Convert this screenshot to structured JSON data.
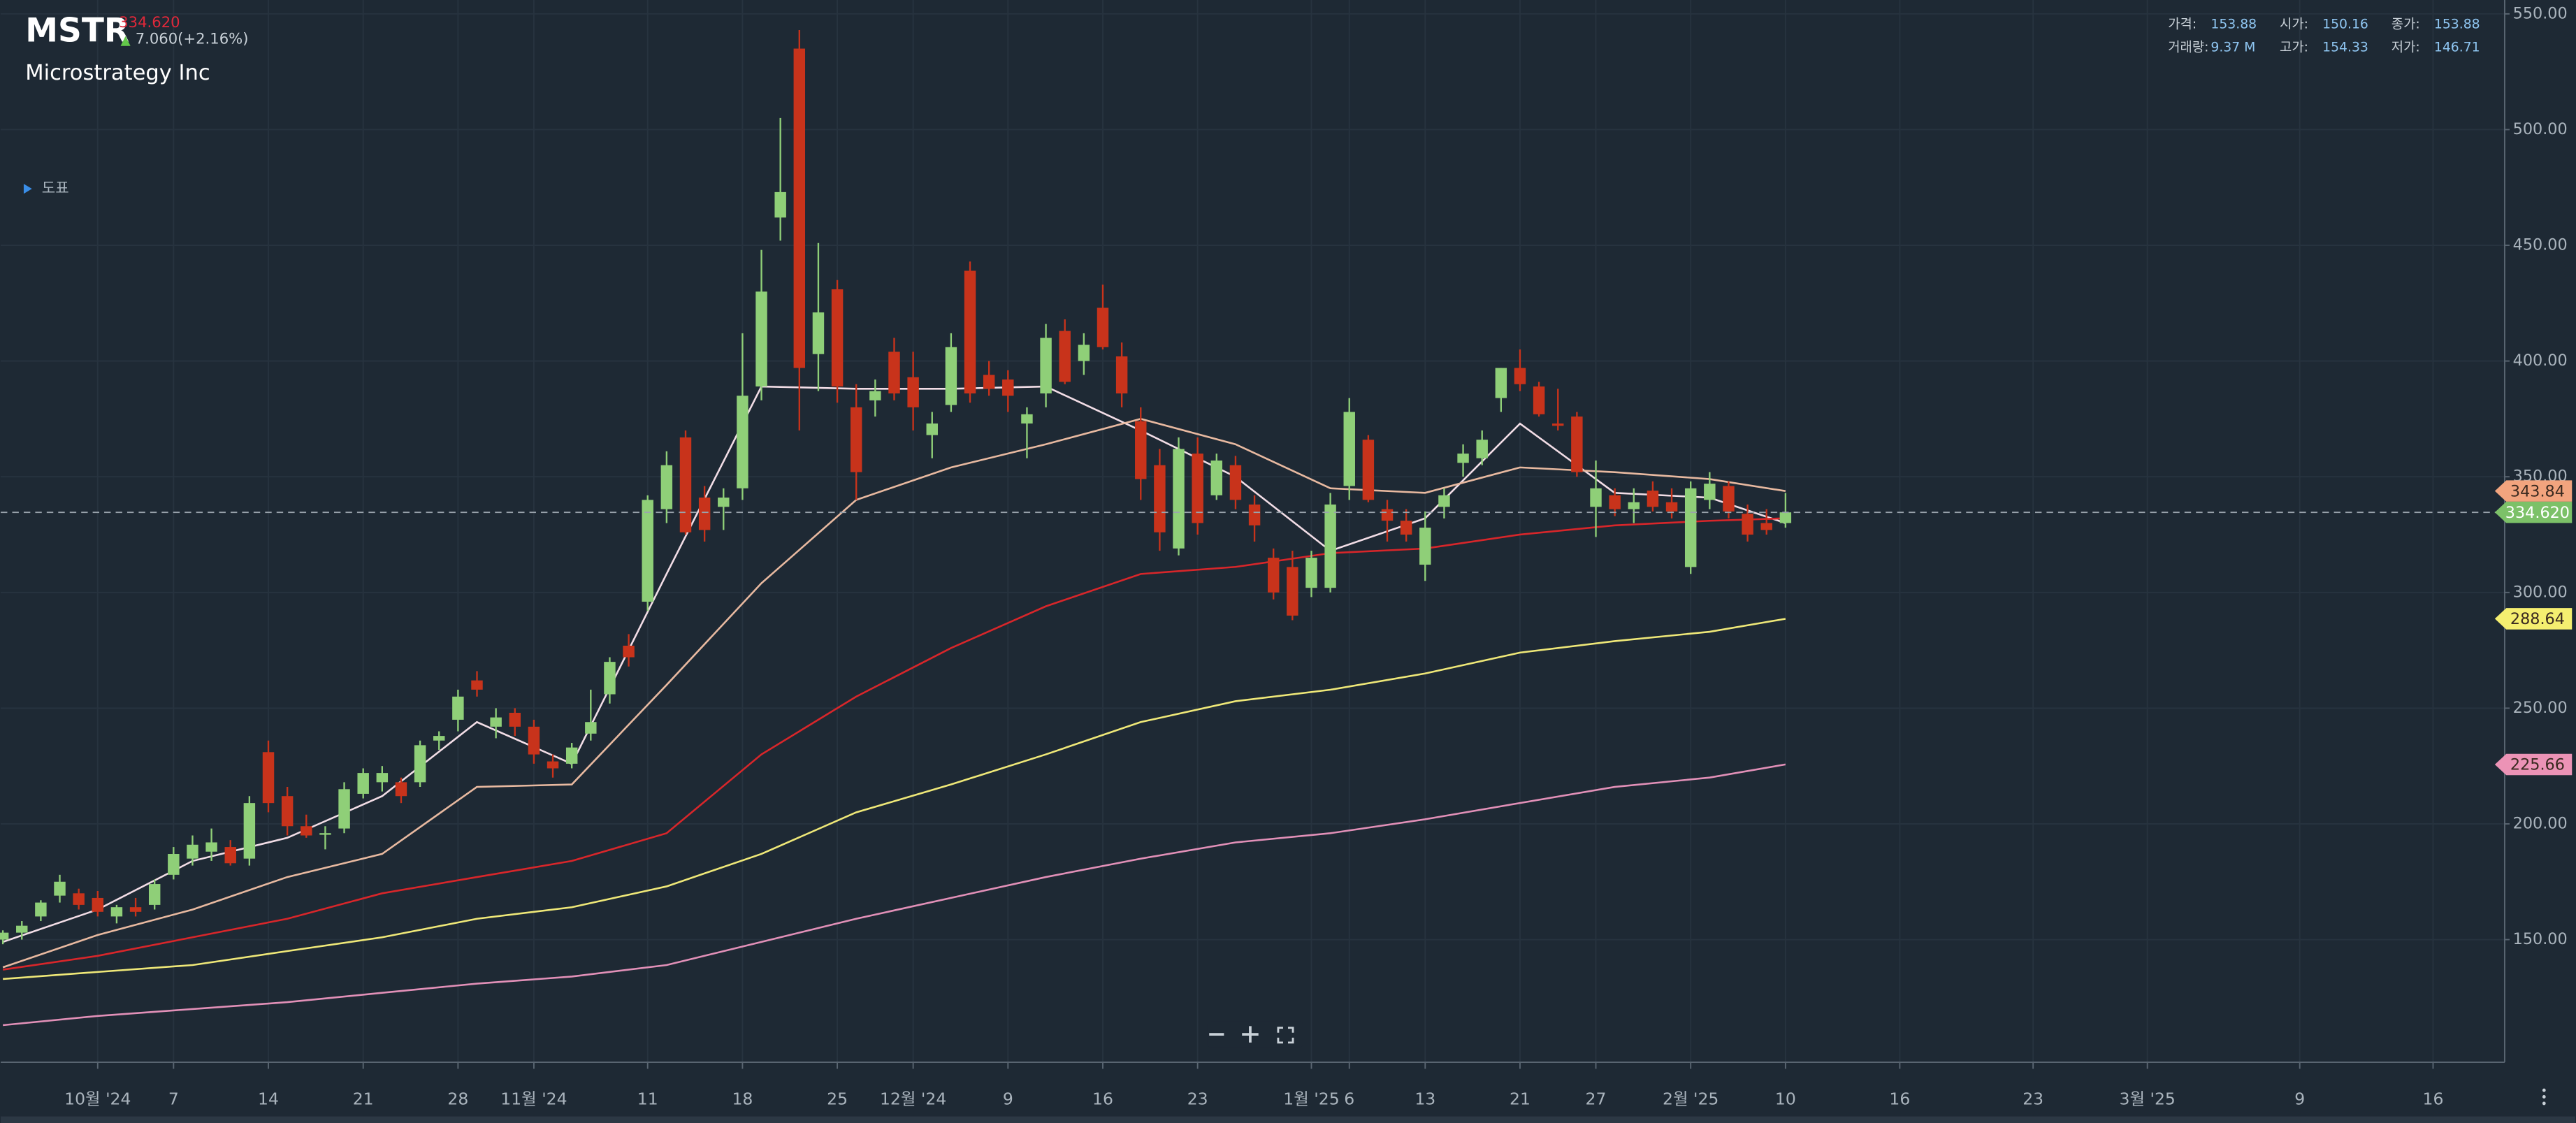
{
  "header": {
    "symbol": "MSTR",
    "price": "334.620",
    "change": "7.060(+2.16%)",
    "name": "Microstrategy Inc",
    "indicator_toggle": "도표"
  },
  "info": [
    {
      "label": "가격:",
      "value": "153.88"
    },
    {
      "label": "시가:",
      "value": "150.16"
    },
    {
      "label": "종가:",
      "value": "153.88"
    },
    {
      "label": "거래량:",
      "value": "9.37 M"
    },
    {
      "label": "고가:",
      "value": "154.33"
    },
    {
      "label": "저가:",
      "value": "146.71"
    }
  ],
  "chart_data": {
    "type": "candlestick",
    "up_color": "#8fcf78",
    "down_color": "#c8331b",
    "grid": true,
    "categories": [
      "2024-09-24",
      "2024-09-25",
      "2024-09-26",
      "2024-09-27",
      "2024-09-30",
      "2024-10-01",
      "2024-10-02",
      "2024-10-03",
      "2024-10-04",
      "2024-10-07",
      "2024-10-08",
      "2024-10-09",
      "2024-10-10",
      "2024-10-11",
      "2024-10-14",
      "2024-10-15",
      "2024-10-16",
      "2024-10-17",
      "2024-10-18",
      "2024-10-21",
      "2024-10-22",
      "2024-10-23",
      "2024-10-24",
      "2024-10-25",
      "2024-10-28",
      "2024-10-29",
      "2024-10-30",
      "2024-10-31",
      "2024-11-01",
      "2024-11-04",
      "2024-11-05",
      "2024-11-06",
      "2024-11-07",
      "2024-11-08",
      "2024-11-11",
      "2024-11-12",
      "2024-11-13",
      "2024-11-14",
      "2024-11-15",
      "2024-11-18",
      "2024-11-19",
      "2024-11-20",
      "2024-11-21",
      "2024-11-22",
      "2024-11-25",
      "2024-11-26",
      "2024-11-27",
      "2024-11-29",
      "2024-12-02",
      "2024-12-03",
      "2024-12-04",
      "2024-12-05",
      "2024-12-06",
      "2024-12-09",
      "2024-12-10",
      "2024-12-11",
      "2024-12-12",
      "2024-12-13",
      "2024-12-16",
      "2024-12-17",
      "2024-12-18",
      "2024-12-19",
      "2024-12-20",
      "2024-12-23",
      "2024-12-24",
      "2024-12-26",
      "2024-12-27",
      "2024-12-30",
      "2024-12-31",
      "2025-01-02",
      "2025-01-03",
      "2025-01-06",
      "2025-01-07",
      "2025-01-08",
      "2025-01-10",
      "2025-01-13",
      "2025-01-14",
      "2025-01-15",
      "2025-01-16",
      "2025-01-17",
      "2025-01-21",
      "2025-01-22",
      "2025-01-23",
      "2025-01-24",
      "2025-01-27",
      "2025-01-28",
      "2025-01-29",
      "2025-01-30",
      "2025-01-31",
      "2025-02-03",
      "2025-02-04",
      "2025-02-05",
      "2025-02-06",
      "2025-02-07",
      "2025-02-10"
    ],
    "open": [
      150,
      153,
      160,
      169,
      170,
      168,
      160,
      164,
      165,
      178,
      185,
      188,
      190,
      185,
      231,
      212,
      199,
      196,
      198,
      213,
      218,
      218,
      218,
      236,
      245,
      262,
      242,
      248,
      242,
      227,
      226,
      239,
      256,
      277,
      296,
      336,
      367,
      341,
      337,
      345,
      389,
      462,
      535,
      403,
      431,
      380,
      383,
      404,
      393,
      368,
      381,
      439,
      394,
      392,
      373,
      386,
      413,
      400,
      423,
      402,
      374,
      355,
      319,
      360,
      342,
      355,
      338,
      315,
      311,
      302,
      302,
      346,
      366,
      336,
      331,
      312,
      337,
      356,
      358,
      384,
      397,
      389,
      373,
      376,
      337,
      342,
      336,
      344,
      339,
      311,
      340,
      346,
      334,
      330,
      330
    ],
    "high": [
      154,
      158,
      167,
      178,
      172,
      171,
      165,
      168,
      176,
      190,
      195,
      198,
      193,
      212,
      236,
      216,
      204,
      199,
      218,
      224,
      225,
      220,
      236,
      240,
      258,
      266,
      250,
      250,
      245,
      230,
      235,
      258,
      272,
      282,
      342,
      361,
      370,
      346,
      345,
      412,
      448,
      505,
      543,
      451,
      435,
      390,
      392,
      410,
      404,
      378,
      412,
      443,
      400,
      396,
      380,
      416,
      418,
      412,
      433,
      408,
      380,
      362,
      367,
      367,
      360,
      359,
      342,
      319,
      318,
      318,
      343,
      384,
      368,
      340,
      336,
      335,
      345,
      364,
      370,
      397,
      405,
      391,
      388,
      378,
      357,
      345,
      345,
      348,
      345,
      348,
      352,
      348,
      338,
      336,
      343
    ],
    "low": [
      148,
      150,
      158,
      166,
      163,
      160,
      157,
      160,
      163,
      176,
      182,
      184,
      182,
      182,
      205,
      195,
      194,
      189,
      196,
      211,
      214,
      209,
      216,
      232,
      240,
      255,
      237,
      238,
      226,
      220,
      224,
      236,
      252,
      268,
      292,
      330,
      325,
      322,
      327,
      340,
      383,
      452,
      370,
      387,
      382,
      340,
      376,
      383,
      370,
      358,
      378,
      382,
      385,
      378,
      358,
      380,
      390,
      394,
      405,
      380,
      340,
      318,
      316,
      325,
      340,
      336,
      322,
      297,
      288,
      298,
      300,
      340,
      339,
      322,
      322,
      305,
      332,
      350,
      355,
      378,
      387,
      376,
      370,
      350,
      324,
      333,
      330,
      335,
      332,
      308,
      336,
      332,
      322,
      325,
      328
    ],
    "close": [
      153,
      156,
      166,
      175,
      165,
      162,
      164,
      162,
      174,
      187,
      191,
      192,
      183,
      209,
      209,
      199,
      195,
      196,
      215,
      222,
      222,
      212,
      234,
      238,
      255,
      258,
      246,
      242,
      230,
      224,
      233,
      244,
      270,
      272,
      340,
      355,
      326,
      327,
      341,
      385,
      430,
      473,
      397,
      421,
      389,
      352,
      387,
      386,
      380,
      373,
      406,
      386,
      388,
      385,
      377,
      410,
      391,
      407,
      406,
      386,
      349,
      326,
      362,
      330,
      357,
      340,
      329,
      300,
      290,
      315,
      338,
      378,
      340,
      331,
      325,
      328,
      342,
      360,
      366,
      397,
      390,
      377,
      372,
      352,
      345,
      336,
      339,
      337,
      335,
      345,
      347,
      335,
      325,
      327,
      334.62
    ],
    "ma_x": [
      "2024-09-24",
      "2024-10-01",
      "2024-10-08",
      "2024-10-15",
      "2024-10-22",
      "2024-10-29",
      "2024-11-05",
      "2024-11-12",
      "2024-11-19",
      "2024-11-26",
      "2024-12-04",
      "2024-12-11",
      "2024-12-18",
      "2024-12-26",
      "2025-01-03",
      "2025-01-13",
      "2025-01-21",
      "2025-01-28",
      "2025-02-04",
      "2025-02-10"
    ],
    "ma_lines": [
      {
        "color": "#f2dde6",
        "values": [
          149,
          163,
          184,
          194,
          212,
          244,
          226,
          308,
          389,
          388,
          388,
          389,
          370,
          350,
          318,
          332,
          373,
          343,
          341,
          330
        ]
      },
      {
        "color": "#e8b9a0",
        "values": [
          138,
          152,
          163,
          177,
          187,
          216,
          217,
          260,
          304,
          340,
          354,
          364,
          375,
          364,
          345,
          343,
          354,
          352,
          349,
          343.84
        ]
      },
      {
        "color": "#d8262a",
        "values": [
          137,
          143,
          151,
          159,
          170,
          177,
          184,
          196,
          230,
          255,
          276,
          294,
          308,
          311,
          317,
          319,
          325,
          329,
          331,
          332
        ]
      },
      {
        "color": "#efe878",
        "values": [
          133,
          136,
          139,
          145,
          151,
          159,
          164,
          173,
          187,
          205,
          217,
          230,
          244,
          253,
          258,
          265,
          274,
          279,
          283,
          288.64
        ]
      },
      {
        "color": "#e290b8",
        "values": [
          113,
          117,
          120,
          123,
          127,
          131,
          134,
          139,
          149,
          159,
          168,
          177,
          185,
          192,
          196,
          202,
          209,
          216,
          220,
          225.66
        ]
      }
    ],
    "price_tags": [
      {
        "value": 343.84,
        "color": "#f2a47e"
      },
      {
        "value": 288.64,
        "color": "#f5ef70"
      },
      {
        "value": 225.66,
        "color": "#ec93b6"
      },
      {
        "value": 334.62,
        "label": "334.620",
        "color": "#7cc168"
      }
    ],
    "ylim": [
      97,
      556
    ],
    "yticks": [
      {
        "value": 150,
        "label": "150.00"
      },
      {
        "value": 200,
        "label": "200.00"
      },
      {
        "value": 250,
        "label": "250.00"
      },
      {
        "value": 300,
        "label": "300.00"
      },
      {
        "value": 350,
        "label": "350.00"
      },
      {
        "value": 400,
        "label": "400.00"
      },
      {
        "value": 450,
        "label": "450.00"
      },
      {
        "value": 500,
        "label": "500.00"
      },
      {
        "value": 550,
        "label": "550.00"
      }
    ],
    "xticks": [
      {
        "value": "2024-10-01",
        "label": "10월 '24"
      },
      {
        "value": "2024-10-07",
        "label": "7"
      },
      {
        "value": "2024-10-14",
        "label": "14"
      },
      {
        "value": "2024-10-21",
        "label": "21"
      },
      {
        "value": "2024-10-28",
        "label": "28"
      },
      {
        "value": "2024-11-01",
        "label": "11월 '24"
      },
      {
        "value": "2024-11-11",
        "label": "11"
      },
      {
        "value": "2024-11-18",
        "label": "18"
      },
      {
        "value": "2024-11-25",
        "label": "25"
      },
      {
        "value": "2024-12-02",
        "label": "12월 '24"
      },
      {
        "value": "2024-12-09",
        "label": "9"
      },
      {
        "value": "2024-12-16",
        "label": "16"
      },
      {
        "value": "2024-12-23",
        "label": "23"
      },
      {
        "value": "2025-01-02",
        "label": "1월 '25"
      },
      {
        "value": "2025-01-06",
        "label": "6"
      },
      {
        "value": "2025-01-13",
        "label": "13"
      },
      {
        "value": "2025-01-21",
        "label": "21"
      },
      {
        "value": "2025-01-27",
        "label": "27"
      },
      {
        "value": "2025-02-03",
        "label": "2월 '25"
      },
      {
        "value": "2025-02-10",
        "label": "10"
      },
      {
        "value": "2025-02-16",
        "label": "16"
      },
      {
        "value": "2025-02-23",
        "label": "23"
      },
      {
        "value": "2025-03-01",
        "label": "3월 '25"
      },
      {
        "value": "2025-03-09",
        "label": "9"
      },
      {
        "value": "2025-03-16",
        "label": "16"
      }
    ]
  }
}
